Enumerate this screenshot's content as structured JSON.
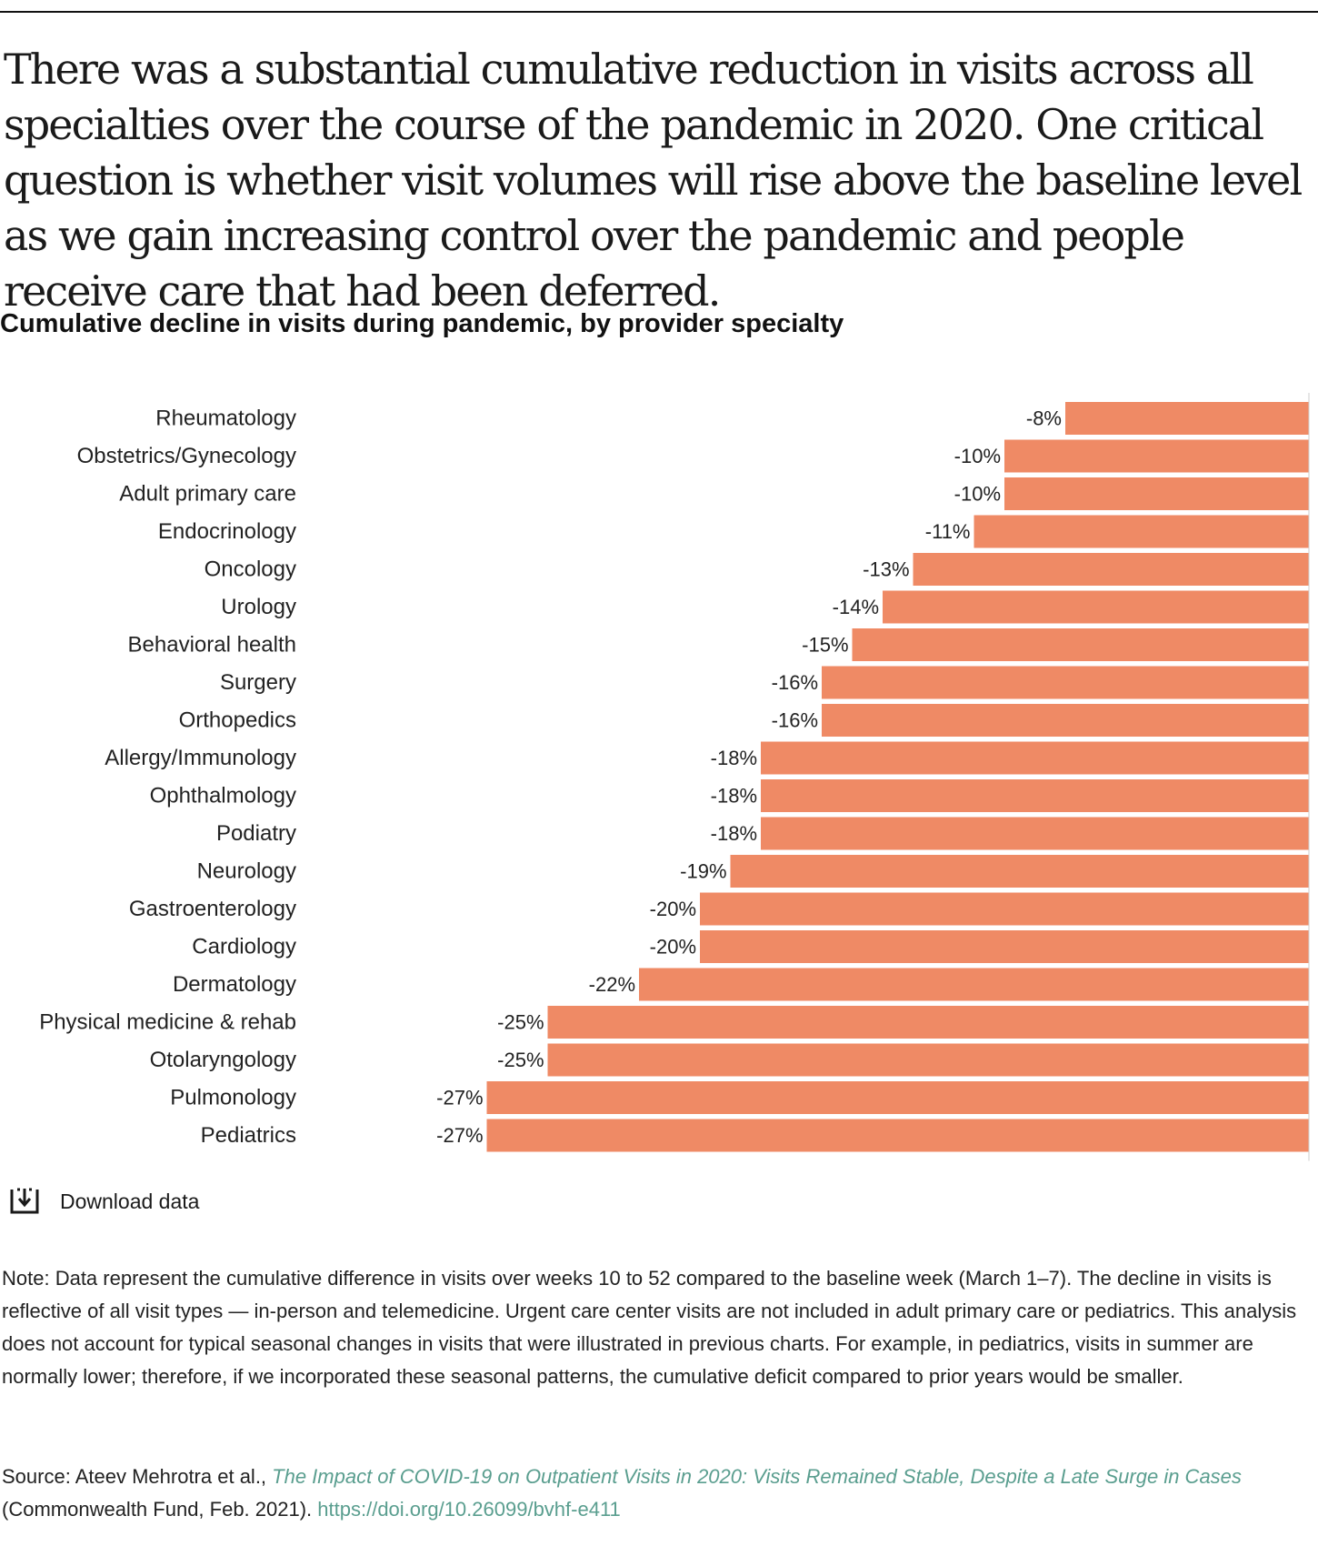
{
  "headline": "There was a substantial cumulative reduction in visits across all specialties over the course of the pandemic in 2020. One critical question is whether visit volumes will rise above the baseline level as we gain increasing control over the pandemic and people receive care that had been deferred.",
  "colors": {
    "bar": "#ef8a65",
    "link": "#5a9e8f",
    "text": "#222222"
  },
  "chart_data": {
    "type": "bar",
    "orientation": "horizontal",
    "title": "Cumulative decline in visits during pandemic, by provider specialty",
    "xlabel": "",
    "ylabel": "",
    "xlim": [
      -31,
      0
    ],
    "categories": [
      "Rheumatology",
      "Obstetrics/Gynecology",
      "Adult primary care",
      "Endocrinology",
      "Oncology",
      "Urology",
      "Behavioral health",
      "Surgery",
      "Orthopedics",
      "Allergy/Immunology",
      "Ophthalmology",
      "Podiatry",
      "Neurology",
      "Gastroenterology",
      "Cardiology",
      "Dermatology",
      "Physical medicine & rehab",
      "Otolaryngology",
      "Pulmonology",
      "Pediatrics"
    ],
    "values": [
      -8,
      -10,
      -10,
      -11,
      -13,
      -14,
      -15,
      -16,
      -16,
      -18,
      -18,
      -18,
      -19,
      -20,
      -20,
      -22,
      -25,
      -25,
      -27,
      -27
    ],
    "value_labels": [
      "-8%",
      "-10%",
      "-10%",
      "-11%",
      "-13%",
      "-14%",
      "-15%",
      "-16%",
      "-16%",
      "-18%",
      "-18%",
      "-18%",
      "-19%",
      "-20%",
      "-20%",
      "-22%",
      "-25%",
      "-25%",
      "-27%",
      "-27%"
    ]
  },
  "download": {
    "label": "Download data",
    "icon": "download-icon"
  },
  "note": "Note: Data represent the cumulative difference in visits over weeks 10 to 52 compared to the baseline week (March 1–7). The decline in visits is reflective of all visit types — in-person and telemedicine. Urgent care center visits are not included in adult primary care or pediatrics. This analysis does not account for typical seasonal changes in visits that were illustrated in previous charts. For example, in pediatrics, visits in summer are normally lower; therefore, if we incorporated these seasonal patterns, the cumulative deficit compared to prior years would be smaller.",
  "source": {
    "prefix": "Source: Ateev Mehrotra et al., ",
    "title": "The Impact of COVID-19 on Outpatient Visits in 2020: Visits Remained Stable, Despite a Late Surge in Cases",
    "middle": " (Commonwealth Fund, Feb. 2021). ",
    "doi": "https://doi.org/10.26099/bvhf-e411"
  }
}
